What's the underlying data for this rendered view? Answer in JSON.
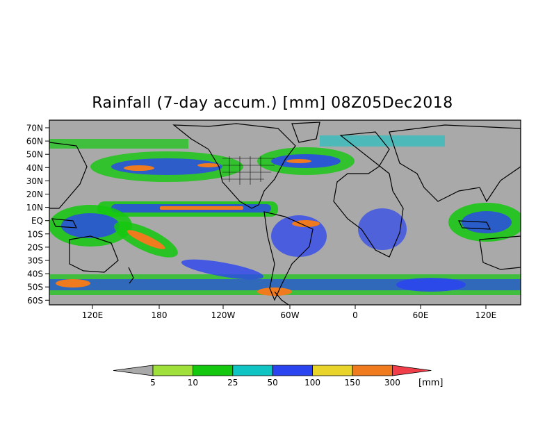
{
  "title": "Rainfall (7-day accum.) [mm] 08Z05Dec2018",
  "lat_labels": [
    "70N",
    "60N",
    "50N",
    "40N",
    "30N",
    "20N",
    "10N",
    "EQ",
    "10S",
    "20S",
    "30S",
    "40S",
    "50S",
    "60S"
  ],
  "lon_labels": [
    "120E",
    "180",
    "120W",
    "60W",
    "0",
    "60E",
    "120E"
  ],
  "legend": {
    "thresholds": [
      "5",
      "10",
      "25",
      "50",
      "100",
      "150",
      "300"
    ],
    "unit": "[mm]",
    "colors": [
      "#a9a9a9",
      "#9fe03a",
      "#14c80f",
      "#10c4c4",
      "#2a44f0",
      "#e8d42a",
      "#f07a1e",
      "#f03e4a"
    ]
  },
  "colors": {
    "land_ocean_base": "#a9a9a9",
    "coastline": "#000000"
  }
}
